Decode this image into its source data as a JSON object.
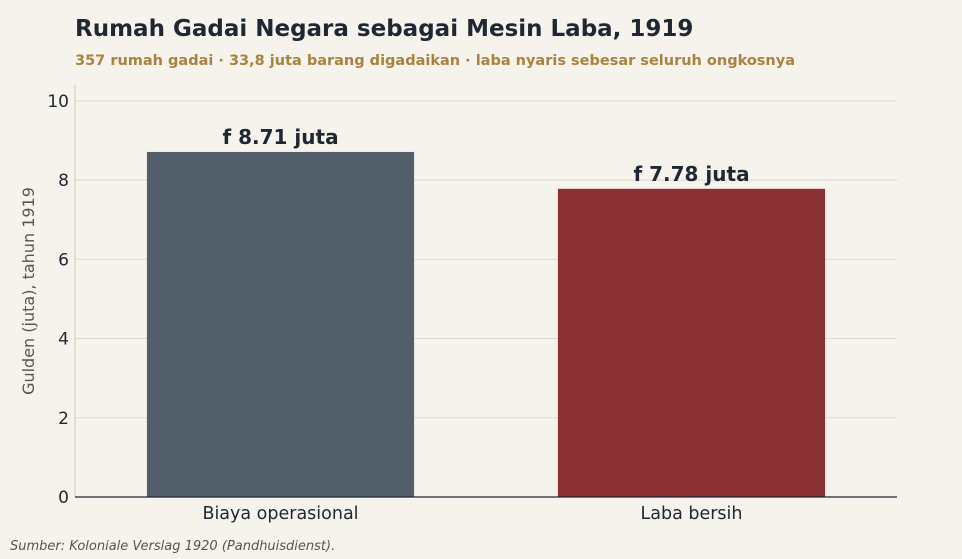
{
  "header": {
    "title": "Rumah Gadai Negara sebagai Mesin Laba, 1919",
    "subtitle": "357 rumah gadai  ·  33,8 juta barang digadaikan  ·  laba nyaris sebesar seluruh ongkosnya"
  },
  "footer": {
    "source": "Sumber: Koloniale Verslag 1920 (Pandhuisdienst)."
  },
  "chart_data": {
    "type": "bar",
    "title": "Rumah Gadai Negara sebagai Mesin Laba, 1919",
    "subtitle": "357 rumah gadai  ·  33,8 juta barang digadaikan  ·  laba nyaris sebesar seluruh ongkosnya",
    "xlabel": "",
    "ylabel": "Gulden (juta), tahun 1919",
    "categories": [
      "Biaya operasional",
      "Laba bersih"
    ],
    "values": [
      8.71,
      7.78
    ],
    "data_labels": [
      "f 8.71 juta",
      "f 7.78 juta"
    ],
    "colors": [
      "#525f6b",
      "#8b3035"
    ],
    "ylim": [
      0,
      10.4
    ],
    "yticks": [
      0,
      2,
      4,
      6,
      8,
      10
    ],
    "grid": "horizontal",
    "legend": "none"
  }
}
